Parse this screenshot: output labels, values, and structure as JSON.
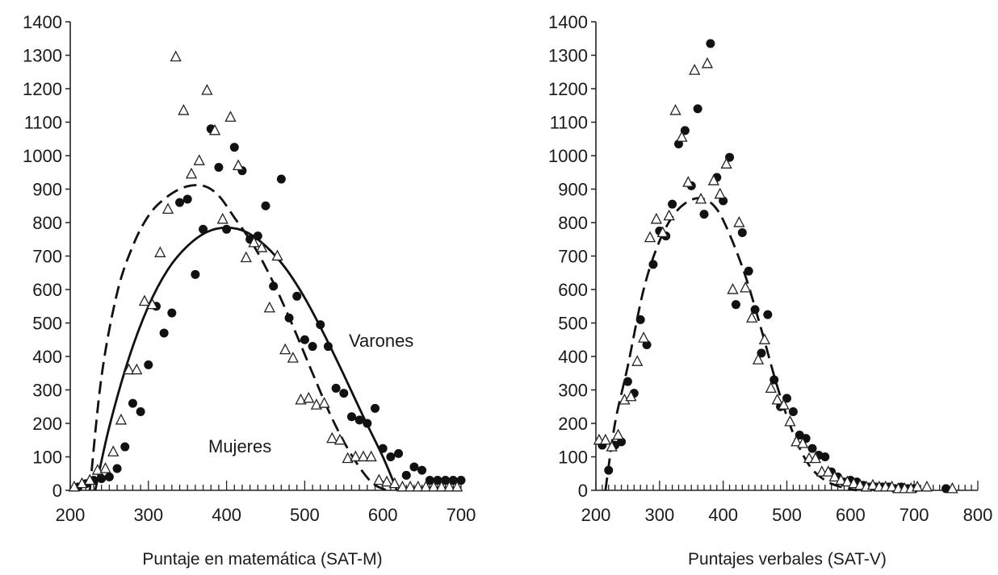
{
  "chart_data": [
    {
      "type": "scatter",
      "title": "",
      "xlabel": "Puntaje en matemática (SAT-M)",
      "ylabel": "",
      "xlim": [
        200,
        700
      ],
      "ylim": [
        0,
        1400
      ],
      "xticks": [
        200,
        300,
        400,
        500,
        600,
        700
      ],
      "yticks": [
        0,
        100,
        200,
        300,
        400,
        500,
        600,
        700,
        800,
        900,
        1000,
        1100,
        1200,
        1300,
        1400
      ],
      "annotations": [
        "Varones",
        "Mujeres"
      ],
      "series": [
        {
          "marker": "filled-circle",
          "points": [
            [
              210,
              10
            ],
            [
              220,
              20
            ],
            [
              230,
              30
            ],
            [
              240,
              35
            ],
            [
              250,
              40
            ],
            [
              260,
              65
            ],
            [
              270,
              130
            ],
            [
              280,
              260
            ],
            [
              290,
              235
            ],
            [
              300,
              375
            ],
            [
              310,
              550
            ],
            [
              320,
              470
            ],
            [
              330,
              530
            ],
            [
              340,
              860
            ],
            [
              350,
              870
            ],
            [
              360,
              645
            ],
            [
              370,
              780
            ],
            [
              380,
              1080
            ],
            [
              390,
              965
            ],
            [
              400,
              780
            ],
            [
              410,
              1025
            ],
            [
              420,
              955
            ],
            [
              430,
              750
            ],
            [
              440,
              760
            ],
            [
              450,
              850
            ],
            [
              460,
              610
            ],
            [
              470,
              930
            ],
            [
              480,
              515
            ],
            [
              490,
              580
            ],
            [
              500,
              450
            ],
            [
              510,
              430
            ],
            [
              520,
              495
            ],
            [
              530,
              430
            ],
            [
              540,
              305
            ],
            [
              550,
              290
            ],
            [
              560,
              220
            ],
            [
              570,
              210
            ],
            [
              580,
              200
            ],
            [
              590,
              245
            ],
            [
              600,
              125
            ],
            [
              610,
              100
            ],
            [
              620,
              110
            ],
            [
              630,
              45
            ],
            [
              640,
              70
            ],
            [
              650,
              60
            ],
            [
              660,
              30
            ],
            [
              670,
              30
            ],
            [
              680,
              30
            ],
            [
              690,
              30
            ],
            [
              700,
              30
            ]
          ]
        },
        {
          "marker": "open-triangle",
          "points": [
            [
              205,
              10
            ],
            [
              215,
              20
            ],
            [
              225,
              30
            ],
            [
              235,
              60
            ],
            [
              245,
              65
            ],
            [
              255,
              115
            ],
            [
              265,
              210
            ],
            [
              275,
              360
            ],
            [
              285,
              360
            ],
            [
              295,
              565
            ],
            [
              305,
              555
            ],
            [
              315,
              710
            ],
            [
              325,
              840
            ],
            [
              335,
              1295
            ],
            [
              345,
              1135
            ],
            [
              355,
              945
            ],
            [
              365,
              985
            ],
            [
              375,
              1195
            ],
            [
              385,
              1075
            ],
            [
              395,
              810
            ],
            [
              405,
              1115
            ],
            [
              415,
              970
            ],
            [
              425,
              695
            ],
            [
              435,
              740
            ],
            [
              445,
              725
            ],
            [
              455,
              545
            ],
            [
              465,
              700
            ],
            [
              475,
              420
            ],
            [
              485,
              395
            ],
            [
              495,
              270
            ],
            [
              505,
              275
            ],
            [
              515,
              255
            ],
            [
              525,
              260
            ],
            [
              535,
              155
            ],
            [
              545,
              150
            ],
            [
              555,
              95
            ],
            [
              565,
              100
            ],
            [
              575,
              100
            ],
            [
              585,
              100
            ],
            [
              595,
              30
            ],
            [
              605,
              25
            ],
            [
              615,
              20
            ],
            [
              625,
              10
            ],
            [
              635,
              10
            ],
            [
              645,
              10
            ],
            [
              655,
              10
            ],
            [
              665,
              10
            ],
            [
              675,
              10
            ],
            [
              685,
              10
            ],
            [
              695,
              10
            ]
          ]
        }
      ],
      "curves": [
        {
          "style": "solid",
          "points": [
            [
              232,
              0
            ],
            [
              250,
              190
            ],
            [
              275,
              395
            ],
            [
              300,
              550
            ],
            [
              325,
              660
            ],
            [
              350,
              730
            ],
            [
              375,
              772
            ],
            [
              400,
              785
            ],
            [
              425,
              772
            ],
            [
              450,
              730
            ],
            [
              475,
              665
            ],
            [
              500,
              575
            ],
            [
              525,
              465
            ],
            [
              550,
              345
            ],
            [
              575,
              220
            ],
            [
              600,
              100
            ],
            [
              618,
              0
            ]
          ]
        },
        {
          "style": "dashed",
          "points": [
            [
              225,
              0
            ],
            [
              240,
              340
            ],
            [
              260,
              590
            ],
            [
              280,
              730
            ],
            [
              300,
              820
            ],
            [
              320,
              870
            ],
            [
              345,
              905
            ],
            [
              370,
              910
            ],
            [
              390,
              880
            ],
            [
              410,
              815
            ],
            [
              435,
              730
            ],
            [
              460,
              620
            ],
            [
              485,
              490
            ],
            [
              510,
              350
            ],
            [
              535,
              215
            ],
            [
              560,
              105
            ],
            [
              585,
              25
            ],
            [
              605,
              0
            ]
          ]
        }
      ]
    },
    {
      "type": "scatter",
      "title": "",
      "xlabel": "Puntajes verbales (SAT-V)",
      "ylabel": "",
      "xlim": [
        200,
        800
      ],
      "ylim": [
        0,
        1400
      ],
      "xticks": [
        200,
        300,
        400,
        500,
        600,
        700,
        800
      ],
      "yticks": [
        0,
        100,
        200,
        300,
        400,
        500,
        600,
        700,
        800,
        900,
        1000,
        1100,
        1200,
        1300,
        1400
      ],
      "series": [
        {
          "marker": "filled-circle",
          "points": [
            [
              210,
              135
            ],
            [
              220,
              60
            ],
            [
              230,
              135
            ],
            [
              240,
              145
            ],
            [
              250,
              325
            ],
            [
              260,
              290
            ],
            [
              270,
              510
            ],
            [
              280,
              435
            ],
            [
              290,
              675
            ],
            [
              300,
              775
            ],
            [
              310,
              760
            ],
            [
              320,
              855
            ],
            [
              330,
              1035
            ],
            [
              340,
              1075
            ],
            [
              350,
              910
            ],
            [
              360,
              1140
            ],
            [
              370,
              825
            ],
            [
              380,
              1335
            ],
            [
              390,
              935
            ],
            [
              400,
              865
            ],
            [
              410,
              995
            ],
            [
              420,
              555
            ],
            [
              430,
              770
            ],
            [
              440,
              655
            ],
            [
              450,
              540
            ],
            [
              460,
              410
            ],
            [
              470,
              525
            ],
            [
              480,
              330
            ],
            [
              490,
              250
            ],
            [
              500,
              275
            ],
            [
              510,
              235
            ],
            [
              520,
              165
            ],
            [
              530,
              155
            ],
            [
              540,
              125
            ],
            [
              550,
              105
            ],
            [
              560,
              100
            ],
            [
              570,
              55
            ],
            [
              580,
              40
            ],
            [
              590,
              25
            ],
            [
              600,
              30
            ],
            [
              610,
              25
            ],
            [
              620,
              15
            ],
            [
              630,
              10
            ],
            [
              640,
              10
            ],
            [
              650,
              10
            ],
            [
              660,
              10
            ],
            [
              670,
              5
            ],
            [
              680,
              10
            ],
            [
              690,
              5
            ],
            [
              700,
              5
            ],
            [
              750,
              5
            ]
          ]
        },
        {
          "marker": "open-triangle",
          "points": [
            [
              205,
              150
            ],
            [
              215,
              150
            ],
            [
              225,
              130
            ],
            [
              235,
              165
            ],
            [
              245,
              270
            ],
            [
              255,
              280
            ],
            [
              265,
              385
            ],
            [
              275,
              455
            ],
            [
              285,
              755
            ],
            [
              295,
              810
            ],
            [
              305,
              770
            ],
            [
              315,
              820
            ],
            [
              325,
              1135
            ],
            [
              335,
              1055
            ],
            [
              345,
              920
            ],
            [
              355,
              1255
            ],
            [
              365,
              870
            ],
            [
              375,
              1275
            ],
            [
              385,
              925
            ],
            [
              395,
              885
            ],
            [
              405,
              975
            ],
            [
              415,
              600
            ],
            [
              425,
              800
            ],
            [
              435,
              605
            ],
            [
              445,
              515
            ],
            [
              455,
              390
            ],
            [
              465,
              450
            ],
            [
              475,
              305
            ],
            [
              485,
              270
            ],
            [
              495,
              255
            ],
            [
              505,
              205
            ],
            [
              515,
              145
            ],
            [
              525,
              140
            ],
            [
              535,
              95
            ],
            [
              545,
              95
            ],
            [
              555,
              55
            ],
            [
              565,
              55
            ],
            [
              575,
              40
            ],
            [
              585,
              30
            ],
            [
              595,
              25
            ],
            [
              605,
              20
            ],
            [
              615,
              15
            ],
            [
              625,
              10
            ],
            [
              635,
              15
            ],
            [
              645,
              10
            ],
            [
              655,
              10
            ],
            [
              665,
              10
            ],
            [
              675,
              5
            ],
            [
              685,
              5
            ],
            [
              695,
              5
            ],
            [
              705,
              10
            ],
            [
              720,
              10
            ],
            [
              760,
              5
            ]
          ]
        }
      ],
      "curves": [
        {
          "style": "dashed",
          "points": [
            [
              215,
              0
            ],
            [
              230,
              200
            ],
            [
              250,
              370
            ],
            [
              275,
              600
            ],
            [
              300,
              745
            ],
            [
              325,
              830
            ],
            [
              350,
              868
            ],
            [
              370,
              870
            ],
            [
              390,
              840
            ],
            [
              410,
              765
            ],
            [
              435,
              640
            ],
            [
              460,
              480
            ],
            [
              485,
              310
            ],
            [
              510,
              170
            ],
            [
              535,
              75
            ],
            [
              560,
              30
            ],
            [
              585,
              10
            ],
            [
              610,
              0
            ]
          ]
        }
      ]
    }
  ]
}
